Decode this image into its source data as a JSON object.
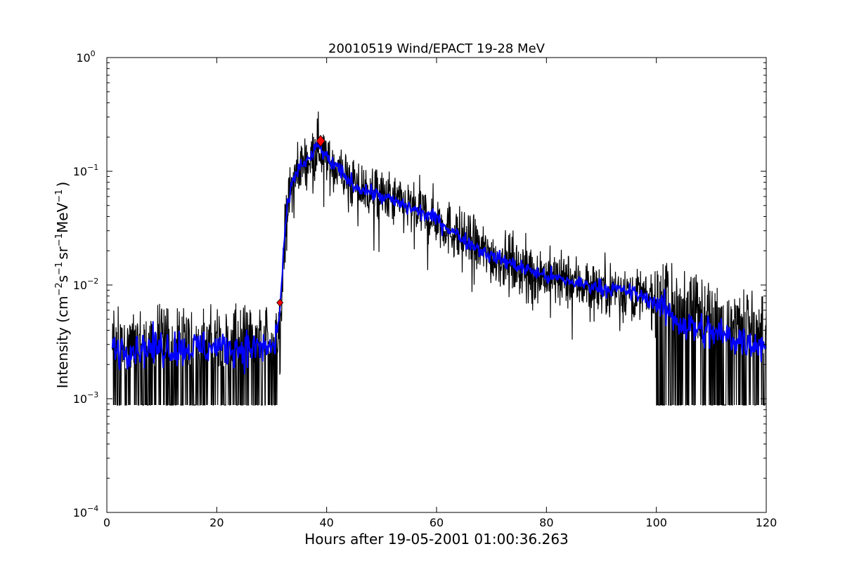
{
  "chart_data": {
    "type": "line",
    "title": "20010519 Wind/EPACT 19-28 MeV",
    "xlabel": "Hours after 19-05-2001 01:00:36.263",
    "ylabel": "Intensity (cm$^{-2}$s$^{-1}$sr$^{-1}$MeV$^{-1}$)",
    "ylabel_parts": {
      "prefix": "Intensity (cm",
      "exp1": "−2",
      "s": "s",
      "exp2": "−1",
      "sr": "sr",
      "exp3": "−1",
      "mev": "MeV",
      "exp4": "−1",
      "suffix": ")"
    },
    "xlim": [
      0,
      120
    ],
    "ylim": [
      0.0001,
      1
    ],
    "yscale": "log",
    "grid": false,
    "x_ticks": [
      0,
      20,
      40,
      60,
      80,
      100,
      120
    ],
    "x_tick_labels": [
      "0",
      "20",
      "40",
      "60",
      "80",
      "100",
      "120"
    ],
    "y_ticks": [
      0.0001,
      0.001,
      0.01,
      0.1,
      1
    ],
    "y_tick_labels": [
      {
        "base": "10",
        "exp": "−4"
      },
      {
        "base": "10",
        "exp": "−3"
      },
      {
        "base": "10",
        "exp": "−2"
      },
      {
        "base": "10",
        "exp": "−1"
      },
      {
        "base": "10",
        "exp": "0"
      }
    ],
    "series": [
      {
        "role": "raw",
        "color": "#000000",
        "noise_floor": 0.00088,
        "profile": [
          [
            1,
            0.0023
          ],
          [
            30.5,
            0.0023
          ],
          [
            31.5,
            0.005
          ],
          [
            32.5,
            0.035
          ],
          [
            33.5,
            0.07
          ],
          [
            35,
            0.11
          ],
          [
            37,
            0.13
          ],
          [
            38.5,
            0.17
          ],
          [
            40,
            0.13
          ],
          [
            45,
            0.075
          ],
          [
            50,
            0.06
          ],
          [
            55,
            0.048
          ],
          [
            60,
            0.038
          ],
          [
            65,
            0.025
          ],
          [
            70,
            0.018
          ],
          [
            75,
            0.0145
          ],
          [
            80,
            0.012
          ],
          [
            85,
            0.0105
          ],
          [
            90,
            0.0095
          ],
          [
            95,
            0.0088
          ],
          [
            100,
            0.007
          ],
          [
            103,
            0.0052
          ],
          [
            106,
            0.0043
          ],
          [
            110,
            0.0038
          ],
          [
            115,
            0.0033
          ],
          [
            120,
            0.003
          ]
        ]
      },
      {
        "role": "smoothed",
        "color": "#0000ff",
        "profile": [
          [
            1,
            0.0028
          ],
          [
            30.5,
            0.0028
          ],
          [
            31.5,
            0.006
          ],
          [
            32.5,
            0.035
          ],
          [
            33.5,
            0.07
          ],
          [
            35,
            0.11
          ],
          [
            37,
            0.13
          ],
          [
            38.5,
            0.17
          ],
          [
            40,
            0.13
          ],
          [
            45,
            0.075
          ],
          [
            50,
            0.06
          ],
          [
            55,
            0.048
          ],
          [
            60,
            0.038
          ],
          [
            65,
            0.025
          ],
          [
            70,
            0.018
          ],
          [
            75,
            0.0145
          ],
          [
            80,
            0.012
          ],
          [
            85,
            0.0105
          ],
          [
            90,
            0.0095
          ],
          [
            95,
            0.0088
          ],
          [
            100,
            0.007
          ],
          [
            103,
            0.0052
          ],
          [
            106,
            0.0043
          ],
          [
            110,
            0.0038
          ],
          [
            115,
            0.0033
          ],
          [
            120,
            0.003
          ]
        ]
      }
    ],
    "markers": [
      {
        "name": "onset",
        "x": 31.5,
        "y": 0.007,
        "color": "#ff0000",
        "shape": "diamond",
        "size": "small"
      },
      {
        "name": "peak",
        "x": 38.9,
        "y": 0.185,
        "color": "#ff0000",
        "shape": "diamond",
        "size": "large"
      }
    ]
  }
}
